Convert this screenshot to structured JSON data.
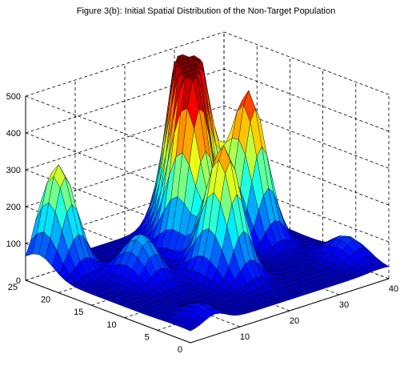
{
  "chart_data": {
    "type": "surface3d",
    "title": "Figure 3(b): Initial Spatial Distribution of the Non-Target Population",
    "xlabel": "",
    "ylabel": "",
    "zlabel": "",
    "xlim": [
      0,
      40
    ],
    "ylim": [
      0,
      25
    ],
    "zlim": [
      0,
      500
    ],
    "x_ticks": [
      "10",
      "20",
      "30",
      "40"
    ],
    "y_ticks": [
      "0",
      "5",
      "10",
      "15",
      "20",
      "25"
    ],
    "z_ticks": [
      "0",
      "100",
      "200",
      "300",
      "400",
      "500"
    ],
    "grid": true,
    "colormap": "jet",
    "grid_resolution": [
      41,
      26
    ],
    "background_level": 30,
    "peaks": [
      {
        "x": 23,
        "y": 17,
        "height": 430
      },
      {
        "x": 26,
        "y": 20,
        "height": 460
      },
      {
        "x": 29,
        "y": 22,
        "height": 495
      },
      {
        "x": 20,
        "y": 10,
        "height": 380
      },
      {
        "x": 33,
        "y": 16,
        "height": 430
      },
      {
        "x": 4,
        "y": 23,
        "height": 310
      },
      {
        "x": 10,
        "y": 15,
        "height": 150
      },
      {
        "x": 38,
        "y": 5,
        "height": 90
      },
      {
        "x": 5,
        "y": 2,
        "height": 70
      }
    ]
  }
}
